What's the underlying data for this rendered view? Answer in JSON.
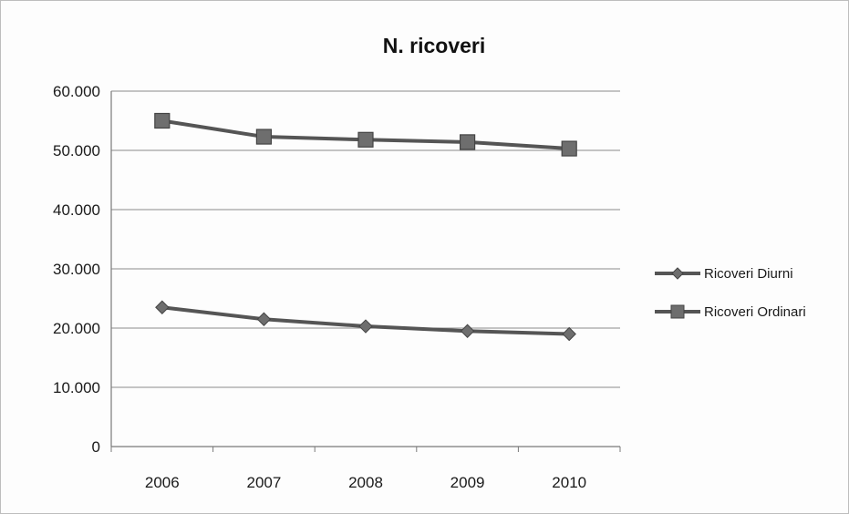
{
  "chart_data": {
    "type": "line",
    "title": "N. ricoveri",
    "xlabel": "",
    "ylabel": "",
    "categories": [
      "2006",
      "2007",
      "2008",
      "2009",
      "2010"
    ],
    "ylim": [
      0,
      60000
    ],
    "yticks": [
      0,
      10000,
      20000,
      30000,
      40000,
      50000,
      60000
    ],
    "ytick_labels": [
      "0",
      "10.000",
      "20.000",
      "30.000",
      "40.000",
      "50.000",
      "60.000"
    ],
    "grid": true,
    "legend_position": "right",
    "series": [
      {
        "name": "Ricoveri Diurni",
        "marker": "diamond",
        "values": [
          23500,
          21500,
          20300,
          19500,
          19000
        ],
        "color": "#555555"
      },
      {
        "name": "Ricoveri Ordinari",
        "marker": "square",
        "values": [
          55000,
          52300,
          51800,
          51400,
          50300
        ],
        "color": "#555555"
      }
    ]
  }
}
